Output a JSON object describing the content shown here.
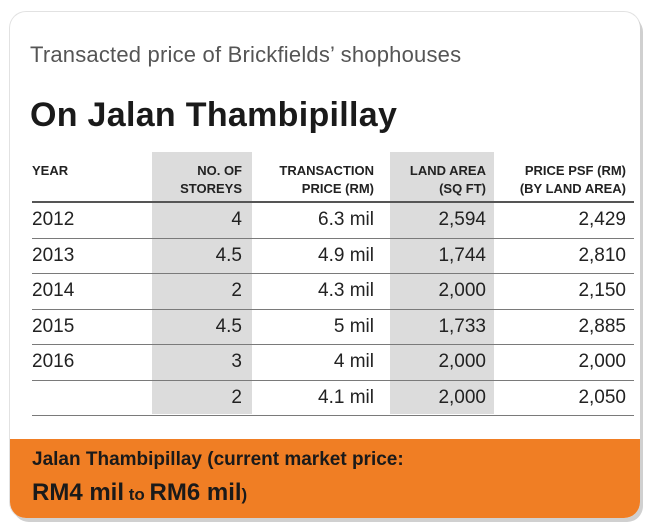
{
  "subtitle": "Transacted price of Brickfields’ shophouses",
  "title": "On Jalan Thambipillay",
  "table": {
    "headers": {
      "year": "YEAR",
      "storeys_1": "NO. OF",
      "storeys_2": "STOREYS",
      "price_1": "TRANSACTION",
      "price_2": "PRICE (RM)",
      "area_1": "LAND AREA",
      "area_2": "(SQ FT)",
      "psf_1": "PRICE PSF (RM)",
      "psf_2": "(BY LAND AREA)"
    },
    "rows": [
      {
        "year": "2012",
        "storeys": "4",
        "price": "6.3 mil",
        "area": "2,594",
        "psf": "2,429"
      },
      {
        "year": "2013",
        "storeys": "4.5",
        "price": "4.9 mil",
        "area": "1,744",
        "psf": "2,810"
      },
      {
        "year": "2014",
        "storeys": "2",
        "price": "4.3 mil",
        "area": "2,000",
        "psf": "2,150"
      },
      {
        "year": "2015",
        "storeys": "4.5",
        "price": "5 mil",
        "area": "1,733",
        "psf": "2,885"
      },
      {
        "year": "2016",
        "storeys": "3",
        "price": "4 mil",
        "area": "2,000",
        "psf": "2,000"
      },
      {
        "year": "",
        "storeys": "2",
        "price": "4.1 mil",
        "area": "2,000",
        "psf": "2,050"
      }
    ]
  },
  "footer": {
    "line1": "Jalan Thambipillay (current market price:",
    "price_low": "RM4 mil",
    "to": " to ",
    "price_high": "RM6 mil",
    "close": ")"
  },
  "colors": {
    "accent": "#f07e24",
    "column_shade": "#dcdcdc"
  }
}
